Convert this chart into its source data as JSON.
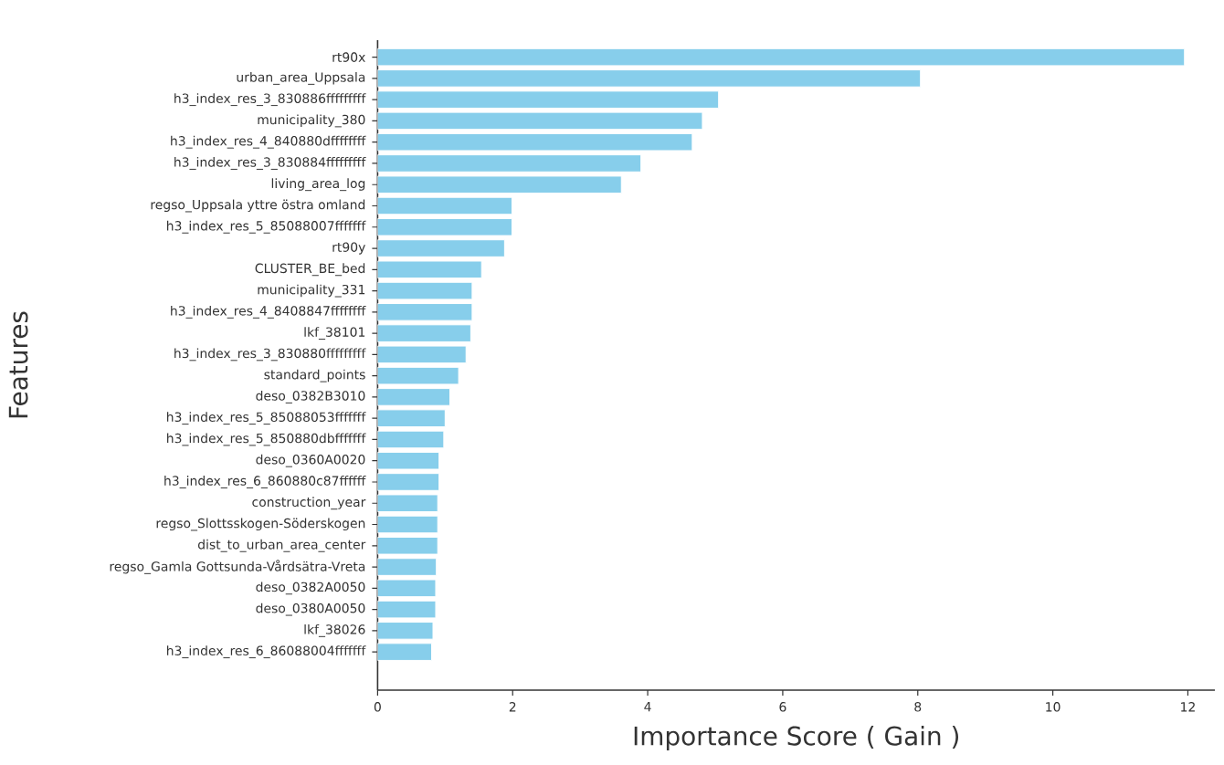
{
  "chart_data": {
    "type": "bar",
    "orientation": "horizontal",
    "xlabel": "Importance Score ( Gain )",
    "ylabel": "Features",
    "color": "#87ceeb",
    "categories": [
      "rt90x",
      "urban_area_Uppsala",
      "h3_index_res_3_830886fffffffff",
      "municipality_380",
      "h3_index_res_4_840880dffffffff",
      "h3_index_res_3_830884fffffffff",
      "living_area_log",
      "regso_Uppsala yttre östra omland",
      "h3_index_res_5_85088007fffffff",
      "rt90y",
      "CLUSTER_BE_bed",
      "municipality_331",
      "h3_index_res_4_8408847ffffffff",
      "lkf_38101",
      "h3_index_res_3_830880fffffffff",
      "standard_points",
      "deso_0382B3010",
      "h3_index_res_5_85088053fffffff",
      "h3_index_res_5_850880dbfffffff",
      "deso_0360A0020",
      "h3_index_res_6_860880c87ffffff",
      "construction_year",
      "regso_Slottsskogen-Söderskogen",
      "dist_to_urban_area_center",
      "regso_Gamla Gottsunda-Vårdsätra-Vreta",
      "deso_0382A0050",
      "deso_0380A0050",
      "lkf_38026",
      "h3_index_res_6_86088004fffffff"
    ],
    "values": [
      11.95,
      8.04,
      5.05,
      4.81,
      4.66,
      3.9,
      3.61,
      1.99,
      1.99,
      1.88,
      1.54,
      1.4,
      1.4,
      1.38,
      1.31,
      1.2,
      1.07,
      1.0,
      0.98,
      0.91,
      0.91,
      0.89,
      0.89,
      0.89,
      0.87,
      0.86,
      0.86,
      0.82,
      0.8
    ],
    "xlim": [
      0,
      12.4
    ],
    "xticks": [
      0,
      2,
      4,
      6,
      8,
      10,
      12
    ],
    "grid": false
  }
}
